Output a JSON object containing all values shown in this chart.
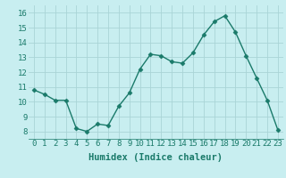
{
  "x": [
    0,
    1,
    2,
    3,
    4,
    5,
    6,
    7,
    8,
    9,
    10,
    11,
    12,
    13,
    14,
    15,
    16,
    17,
    18,
    19,
    20,
    21,
    22,
    23
  ],
  "y": [
    10.8,
    10.5,
    10.1,
    10.1,
    8.2,
    8.0,
    8.5,
    8.4,
    9.7,
    10.6,
    12.2,
    13.2,
    13.1,
    12.7,
    12.6,
    13.3,
    14.5,
    15.4,
    15.8,
    14.7,
    13.1,
    11.6,
    10.1,
    8.1
  ],
  "line_color": "#1a7a6a",
  "marker_color": "#1a7a6a",
  "bg_color": "#c8eef0",
  "grid_color": "#aad4d6",
  "xlabel": "Humidex (Indice chaleur)",
  "xlim": [
    -0.5,
    23.5
  ],
  "ylim": [
    7.5,
    16.5
  ],
  "yticks": [
    8,
    9,
    10,
    11,
    12,
    13,
    14,
    15,
    16
  ],
  "xticks": [
    0,
    1,
    2,
    3,
    4,
    5,
    6,
    7,
    8,
    9,
    10,
    11,
    12,
    13,
    14,
    15,
    16,
    17,
    18,
    19,
    20,
    21,
    22,
    23
  ],
  "tick_label_fontsize": 6.5,
  "xlabel_fontsize": 7.5,
  "line_width": 1.0,
  "marker_size": 2.5
}
